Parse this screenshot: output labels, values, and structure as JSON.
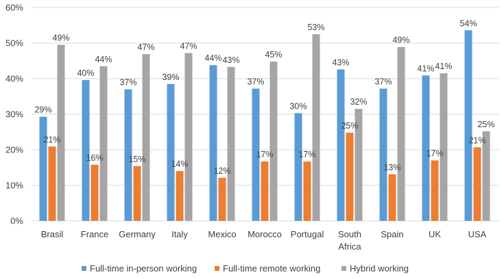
{
  "chart_data": {
    "type": "bar",
    "title": "",
    "xlabel": "",
    "ylabel": "",
    "ylim": [
      0,
      60
    ],
    "yticks": [
      "0%",
      "10%",
      "20%",
      "30%",
      "40%",
      "50%",
      "60%"
    ],
    "grid": true,
    "legend_position": "bottom",
    "categories": [
      "Brasil",
      "France",
      "Germany",
      "Italy",
      "Mexico",
      "Morocco",
      "Portugal",
      "South Africa",
      "Spain",
      "UK",
      "USA"
    ],
    "category_lines": [
      [
        "Brasil"
      ],
      [
        "France"
      ],
      [
        "Germany"
      ],
      [
        "Italy"
      ],
      [
        "Mexico"
      ],
      [
        "Morocco"
      ],
      [
        "Portugal"
      ],
      [
        "South",
        "Africa"
      ],
      [
        "Spain"
      ],
      [
        "UK"
      ],
      [
        "USA"
      ]
    ],
    "series": [
      {
        "name": "Full-time in-person working",
        "color": "#5b9bd5",
        "values": [
          29,
          40,
          37,
          39,
          44,
          37,
          30,
          43,
          37,
          41,
          54
        ],
        "display": [
          29.3,
          39.6,
          37.0,
          38.5,
          43.8,
          37.2,
          30.3,
          42.6,
          37.2,
          40.9,
          53.6
        ],
        "labels": [
          "29%",
          "40%",
          "37%",
          "39%",
          "44%",
          "37%",
          "30%",
          "43%",
          "37%",
          "41%",
          "54%"
        ]
      },
      {
        "name": "Full-time remote working",
        "color": "#ed7d31",
        "values": [
          21,
          16,
          15,
          14,
          12,
          17,
          17,
          25,
          13,
          17,
          21
        ],
        "display": [
          20.9,
          15.8,
          15.4,
          14.0,
          12.1,
          16.7,
          16.7,
          24.8,
          13.1,
          17.0,
          20.7
        ],
        "labels": [
          "21%",
          "16%",
          "15%",
          "14%",
          "12%",
          "17%",
          "17%",
          "25%",
          "13%",
          "17%",
          "21%"
        ]
      },
      {
        "name": "Hybrid working",
        "color": "#a5a5a5",
        "values": [
          49,
          44,
          47,
          47,
          43,
          45,
          53,
          32,
          49,
          41,
          25
        ],
        "display": [
          49.5,
          43.5,
          46.9,
          47.2,
          43.3,
          44.8,
          52.5,
          31.5,
          48.9,
          41.5,
          25.2
        ],
        "labels": [
          "49%",
          "44%",
          "47%",
          "47%",
          "43%",
          "45%",
          "53%",
          "32%",
          "49%",
          "41%",
          "25%"
        ]
      }
    ]
  }
}
